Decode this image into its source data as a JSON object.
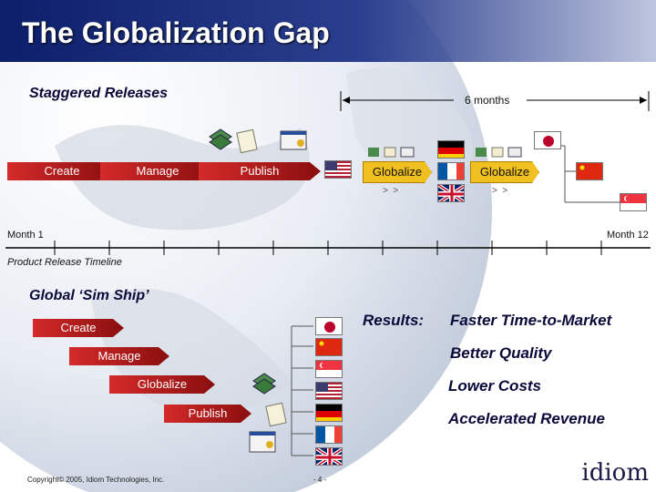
{
  "title": "The Globalization Gap",
  "staggered": {
    "heading": "Staggered Releases",
    "duration": "6 months",
    "steps": [
      "Create",
      "Manage",
      "Publish"
    ],
    "globalize": [
      "Globalize",
      "Globalize"
    ]
  },
  "timeline": {
    "start": "Month 1",
    "end": "Month 12",
    "caption": "Product Release Timeline"
  },
  "simship": {
    "heading": "Global ‘Sim Ship’",
    "steps": [
      "Create",
      "Manage",
      "Globalize",
      "Publish"
    ]
  },
  "results": {
    "label": "Results:",
    "items": [
      "Faster Time-to-Market",
      "Better Quality",
      "Lower Costs",
      "Accelerated Revenue"
    ]
  },
  "footer": {
    "copyright": "Copyright© 2005, Idiom Technologies, Inc.",
    "page": "- 4 -",
    "logo": "idiom"
  },
  "colors": {
    "arrow": "#b81a1a",
    "globalize": "#f0c020",
    "title_bar": "#0d1f6b"
  },
  "flags": [
    "japan-flag",
    "china-flag",
    "singapore-flag",
    "usa-flag",
    "germany-flag",
    "france-flag",
    "uk-flag"
  ]
}
